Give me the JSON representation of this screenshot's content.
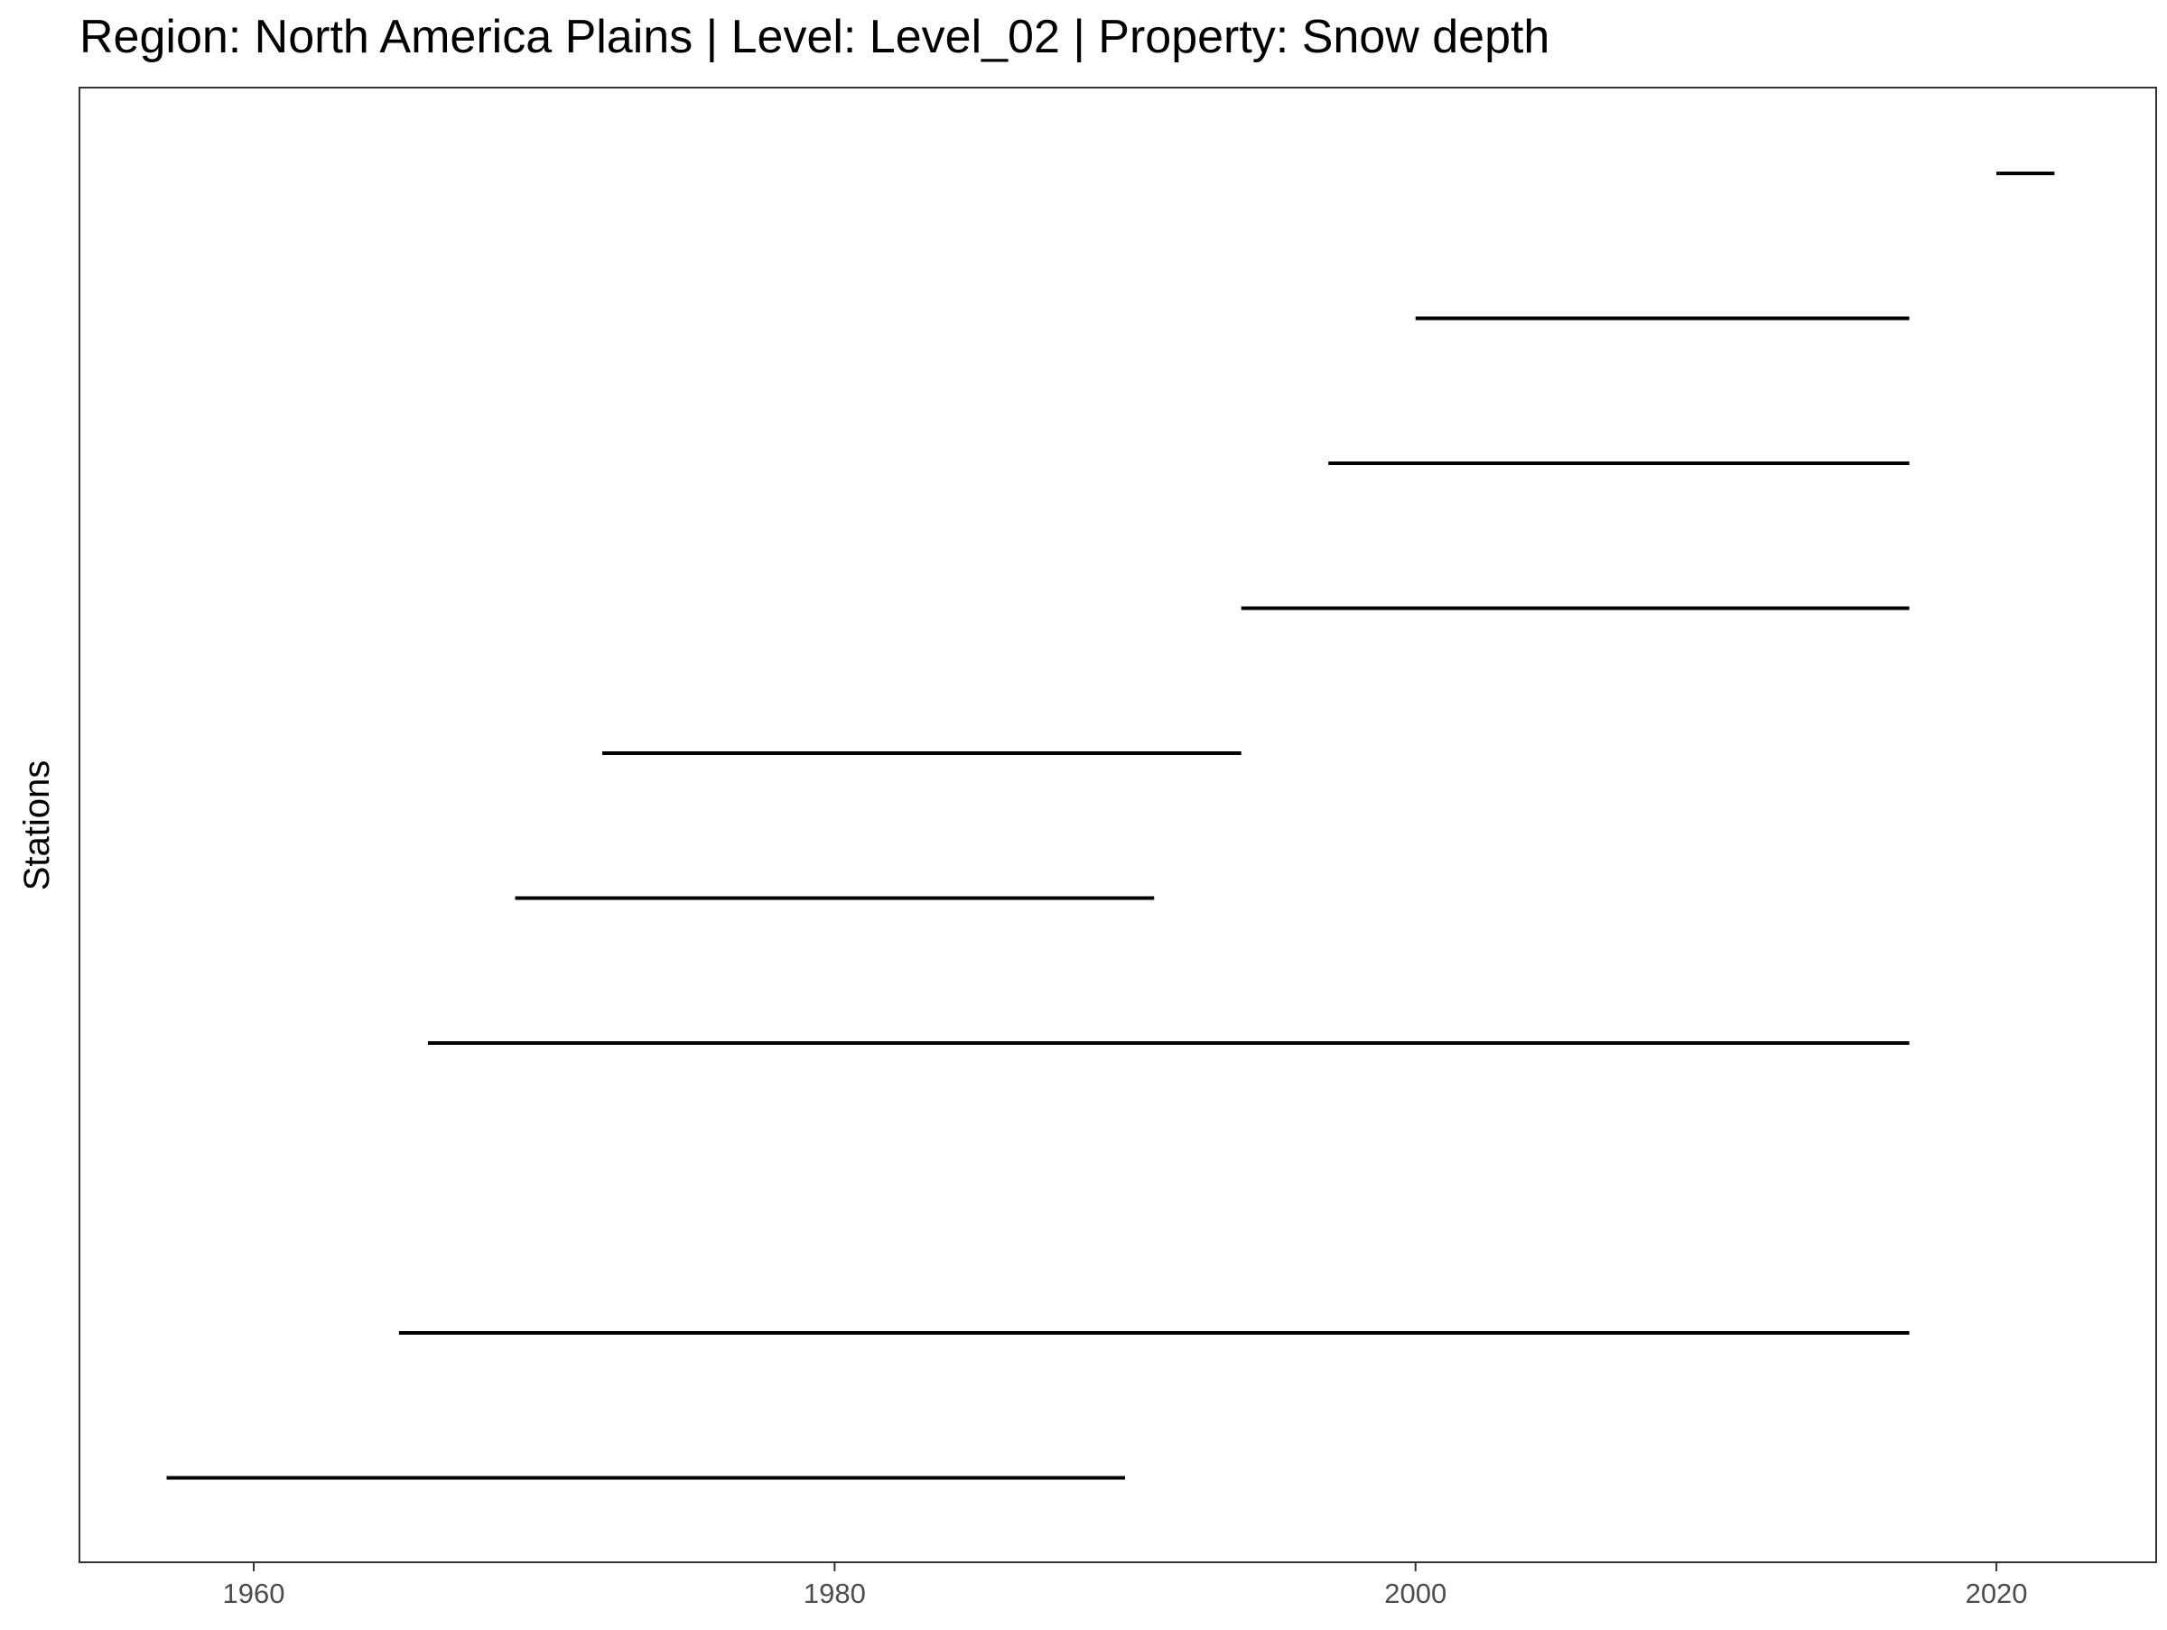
{
  "chart_data": {
    "type": "segment",
    "title": "Region: North America Plains | Level: Level_02 | Property: Snow depth",
    "xlabel": "",
    "ylabel": "Stations",
    "xlim": [
      1954,
      2025.5
    ],
    "x_ticks": [
      1960,
      1980,
      2000,
      2020
    ],
    "n_station_rows": 10,
    "grid": false,
    "segment_color": "#000000",
    "segments": [
      {
        "row": 10,
        "start": 2020.0,
        "end": 2022.0
      },
      {
        "row": 9,
        "start": 2000.0,
        "end": 2017.0
      },
      {
        "row": 8,
        "start": 1997.0,
        "end": 2017.0
      },
      {
        "row": 7,
        "start": 1994.0,
        "end": 2017.0
      },
      {
        "row": 6,
        "start": 1972.0,
        "end": 1994.0
      },
      {
        "row": 5,
        "start": 1969.0,
        "end": 1991.0
      },
      {
        "row": 4,
        "start": 1966.0,
        "end": 2017.0
      },
      {
        "row": 2,
        "start": 1965.0,
        "end": 2017.0
      },
      {
        "row": 1,
        "start": 1957.0,
        "end": 1990.0
      }
    ]
  }
}
